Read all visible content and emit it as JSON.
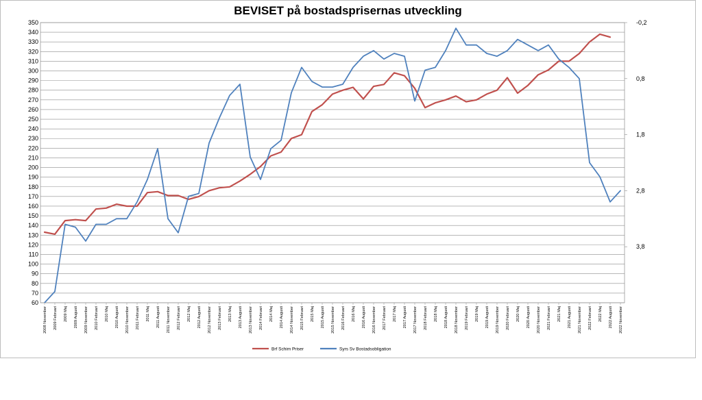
{
  "chart_data": {
    "type": "line",
    "title": "BEVISET på bostadsprisernas utveckling",
    "left_axis": {
      "ylim": [
        60,
        350
      ],
      "ticks": [
        60,
        70,
        80,
        90,
        100,
        110,
        120,
        130,
        140,
        150,
        160,
        170,
        180,
        190,
        200,
        210,
        220,
        230,
        240,
        250,
        260,
        270,
        280,
        290,
        300,
        310,
        320,
        330,
        340,
        350
      ]
    },
    "right_axis": {
      "reversed": true,
      "ylim": [
        -0.2,
        4.8
      ],
      "ticks": [
        -0.2,
        0.8,
        1.8,
        2.8,
        3.8
      ],
      "tick_labels": [
        "-0,2",
        "0,8",
        "1,8",
        "2,8",
        "3,8"
      ]
    },
    "x": {
      "start": "2008 November",
      "end": "2022 November",
      "step_months": 1,
      "tick_labels": [
        "2008 November",
        "2009 Februari",
        "2009 Maj",
        "2009 Augusti",
        "2009 November",
        "2010 Februari",
        "2010 Maj",
        "2010 Augusti",
        "2010 November",
        "2011 Februari",
        "2011 Maj",
        "2011 Augusti",
        "2011 November",
        "2012 Februari",
        "2012 Maj",
        "2012 Augusti",
        "2012 November",
        "2013 Februari",
        "2013 Maj",
        "2013 Augusti",
        "2013 November",
        "2014 Februari",
        "2014 Maj",
        "2014 Augusti",
        "2014 November",
        "2015 Februari",
        "2015 Maj",
        "2015 Augusti",
        "2015 November",
        "2016 Februari",
        "2016 Maj",
        "2016 Augusti",
        "2016 November",
        "2017 Februari",
        "2017 Maj",
        "2017 Augusti",
        "2017 November",
        "2018 Februari",
        "2018 Maj",
        "2018 Augusti",
        "2018 November",
        "2019 Februari",
        "2019 Maj",
        "2019 Augusti",
        "2019 November",
        "2020 Februari",
        "2020 Maj",
        "2020 Augusti",
        "2020 November",
        "2021 Februari",
        "2021 Maj",
        "2021 Augusti",
        "2021 November",
        "2022 Februari",
        "2022 Maj",
        "2022 Augusti",
        "2022 November"
      ]
    },
    "series": [
      {
        "name": "Brf Schim Priser",
        "axis": "left",
        "color": "#c0504d",
        "points": [
          [
            "2008 November",
            133
          ],
          [
            "2009 Februari",
            131
          ],
          [
            "2009 Maj",
            145
          ],
          [
            "2009 Augusti",
            146
          ],
          [
            "2009 November",
            145
          ],
          [
            "2010 Februari",
            157
          ],
          [
            "2010 Maj",
            158
          ],
          [
            "2010 Augusti",
            162
          ],
          [
            "2010 November",
            160
          ],
          [
            "2011 Februari",
            160
          ],
          [
            "2011 Maj",
            174
          ],
          [
            "2011 Augusti",
            175
          ],
          [
            "2011 November",
            171
          ],
          [
            "2012 Februari",
            171
          ],
          [
            "2012 Maj",
            167
          ],
          [
            "2012 Augusti",
            170
          ],
          [
            "2012 November",
            176
          ],
          [
            "2013 Februari",
            179
          ],
          [
            "2013 Maj",
            180
          ],
          [
            "2013 Augusti",
            186
          ],
          [
            "2013 November",
            193
          ],
          [
            "2014 Februari",
            201
          ],
          [
            "2014 Maj",
            212
          ],
          [
            "2014 Augusti",
            216
          ],
          [
            "2014 November",
            230
          ],
          [
            "2015 Februari",
            234
          ],
          [
            "2015 Maj",
            258
          ],
          [
            "2015 Augusti",
            265
          ],
          [
            "2015 November",
            276
          ],
          [
            "2016 Februari",
            280
          ],
          [
            "2016 Maj",
            283
          ],
          [
            "2016 Augusti",
            271
          ],
          [
            "2016 November",
            284
          ],
          [
            "2017 Februari",
            286
          ],
          [
            "2017 Maj",
            298
          ],
          [
            "2017 Augusti",
            295
          ],
          [
            "2017 November",
            282
          ],
          [
            "2018 Februari",
            262
          ],
          [
            "2018 Maj",
            267
          ],
          [
            "2018 Augusti",
            270
          ],
          [
            "2018 November",
            274
          ],
          [
            "2019 Februari",
            268
          ],
          [
            "2019 Maj",
            270
          ],
          [
            "2019 Augusti",
            276
          ],
          [
            "2019 November",
            280
          ],
          [
            "2020 Februari",
            293
          ],
          [
            "2020 Maj",
            277
          ],
          [
            "2020 Augusti",
            285
          ],
          [
            "2020 November",
            296
          ],
          [
            "2021 Februari",
            301
          ],
          [
            "2021 Maj",
            310
          ],
          [
            "2021 Augusti",
            310
          ],
          [
            "2021 November",
            318
          ],
          [
            "2022 Februari",
            330
          ],
          [
            "2022 Maj",
            338
          ],
          [
            "2022 Augusti",
            335
          ]
        ]
      },
      {
        "name": "Syrs Sv Bostadsobligation",
        "axis": "right",
        "color": "#4f81bd",
        "points": [
          [
            "2008 November",
            4.8
          ],
          [
            "2009 Februari",
            4.6
          ],
          [
            "2009 Maj",
            3.4
          ],
          [
            "2009 Augusti",
            3.45
          ],
          [
            "2009 November",
            3.7
          ],
          [
            "2010 Februari",
            3.4
          ],
          [
            "2010 Maj",
            3.4
          ],
          [
            "2010 Augusti",
            3.3
          ],
          [
            "2010 November",
            3.3
          ],
          [
            "2011 Februari",
            3.0
          ],
          [
            "2011 Maj",
            2.6
          ],
          [
            "2011 Augusti",
            2.05
          ],
          [
            "2011 November",
            3.3
          ],
          [
            "2012 Februari",
            3.55
          ],
          [
            "2012 Maj",
            2.9
          ],
          [
            "2012 Augusti",
            2.85
          ],
          [
            "2012 November",
            1.95
          ],
          [
            "2013 Februari",
            1.5
          ],
          [
            "2013 Maj",
            1.1
          ],
          [
            "2013 Augusti",
            0.9
          ],
          [
            "2013 November",
            2.2
          ],
          [
            "2014 Februari",
            2.6
          ],
          [
            "2014 Maj",
            2.05
          ],
          [
            "2014 Augusti",
            1.9
          ],
          [
            "2014 November",
            1.05
          ],
          [
            "2015 Februari",
            0.6
          ],
          [
            "2015 Maj",
            0.85
          ],
          [
            "2015 Augusti",
            0.95
          ],
          [
            "2015 November",
            0.95
          ],
          [
            "2016 Februari",
            0.9
          ],
          [
            "2016 Maj",
            0.6
          ],
          [
            "2016 Augusti",
            0.4
          ],
          [
            "2016 November",
            0.3
          ],
          [
            "2017 Februari",
            0.45
          ],
          [
            "2017 Maj",
            0.35
          ],
          [
            "2017 Augusti",
            0.4
          ],
          [
            "2017 November",
            1.2
          ],
          [
            "2018 Februari",
            0.65
          ],
          [
            "2018 Maj",
            0.6
          ],
          [
            "2018 Augusti",
            0.3
          ],
          [
            "2018 November",
            -0.1
          ],
          [
            "2019 Februari",
            0.2
          ],
          [
            "2019 Maj",
            0.2
          ],
          [
            "2019 Augusti",
            0.35
          ],
          [
            "2019 November",
            0.4
          ],
          [
            "2020 Februari",
            0.3
          ],
          [
            "2020 Maj",
            0.1
          ],
          [
            "2020 Augusti",
            0.2
          ],
          [
            "2020 November",
            0.3
          ],
          [
            "2021 Februari",
            0.2
          ],
          [
            "2021 Maj",
            0.45
          ],
          [
            "2021 Augusti",
            0.6
          ],
          [
            "2021 November",
            0.8
          ],
          [
            "2022 Februari",
            2.3
          ],
          [
            "2022 Maj",
            2.55
          ],
          [
            "2022 Augusti",
            3.0
          ],
          [
            "2022 November",
            2.8
          ]
        ]
      }
    ],
    "legend": "bottom-center",
    "grid": "horizontal"
  }
}
